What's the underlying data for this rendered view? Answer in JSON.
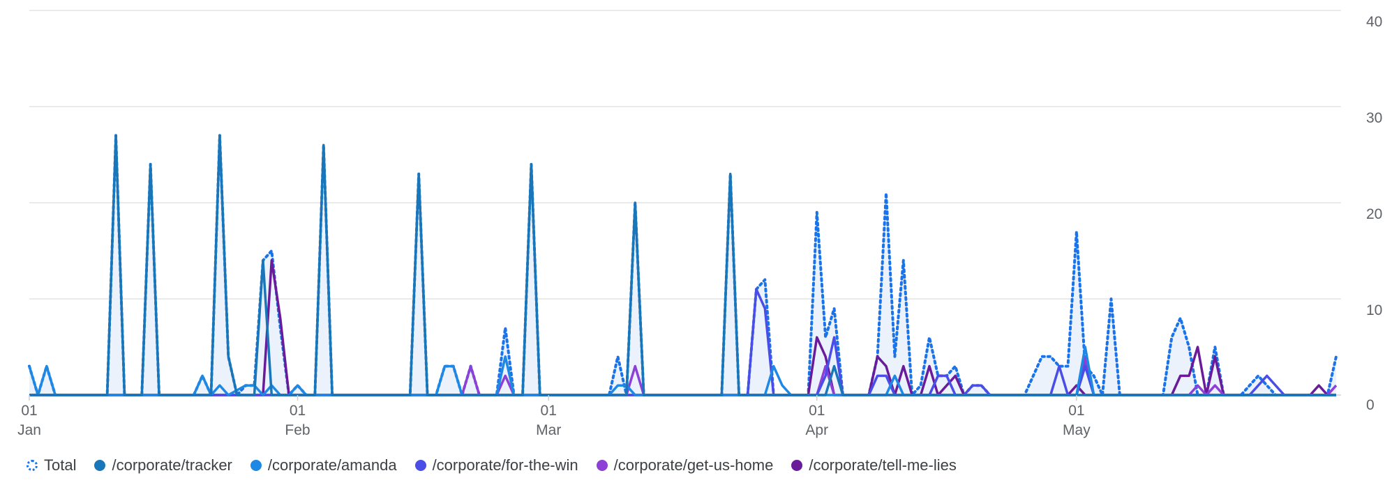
{
  "chart_data": {
    "type": "line",
    "title": "",
    "xlabel": "",
    "ylabel": "",
    "ylim": [
      0,
      40
    ],
    "yticks": [
      0,
      10,
      20,
      30,
      40
    ],
    "grid": true,
    "legend_position": "bottom",
    "x_start": "2024-01-01",
    "x_end": "2024-05-31",
    "x_ticks": [
      {
        "date": "2024-01-01",
        "day": "01",
        "month": "Jan"
      },
      {
        "date": "2024-02-01",
        "day": "01",
        "month": "Feb"
      },
      {
        "date": "2024-03-01",
        "day": "01",
        "month": "Mar"
      },
      {
        "date": "2024-04-01",
        "day": "01",
        "month": "Apr"
      },
      {
        "date": "2024-05-01",
        "day": "01",
        "month": "May"
      }
    ],
    "series": [
      {
        "name": "Total",
        "color": "#1a73e8",
        "style": "dotted-area",
        "points": [
          [
            "2024-01-01",
            3
          ],
          [
            "2024-01-02",
            0
          ],
          [
            "2024-01-03",
            3
          ],
          [
            "2024-01-04",
            0
          ],
          [
            "2024-01-10",
            0
          ],
          [
            "2024-01-11",
            27
          ],
          [
            "2024-01-12",
            0
          ],
          [
            "2024-01-14",
            0
          ],
          [
            "2024-01-15",
            24
          ],
          [
            "2024-01-16",
            0
          ],
          [
            "2024-01-20",
            0
          ],
          [
            "2024-01-21",
            2
          ],
          [
            "2024-01-22",
            0
          ],
          [
            "2024-01-23",
            27
          ],
          [
            "2024-01-24",
            4
          ],
          [
            "2024-01-25",
            0
          ],
          [
            "2024-01-26",
            1
          ],
          [
            "2024-01-27",
            1
          ],
          [
            "2024-01-28",
            14
          ],
          [
            "2024-01-29",
            15
          ],
          [
            "2024-01-30",
            7
          ],
          [
            "2024-01-31",
            0
          ],
          [
            "2024-02-01",
            1
          ],
          [
            "2024-02-02",
            0
          ],
          [
            "2024-02-03",
            0
          ],
          [
            "2024-02-04",
            26
          ],
          [
            "2024-02-05",
            0
          ],
          [
            "2024-02-14",
            0
          ],
          [
            "2024-02-15",
            23
          ],
          [
            "2024-02-16",
            0
          ],
          [
            "2024-02-17",
            0
          ],
          [
            "2024-02-18",
            3
          ],
          [
            "2024-02-19",
            3
          ],
          [
            "2024-02-20",
            0
          ],
          [
            "2024-02-21",
            3
          ],
          [
            "2024-02-22",
            0
          ],
          [
            "2024-02-24",
            0
          ],
          [
            "2024-02-25",
            7
          ],
          [
            "2024-02-26",
            0
          ],
          [
            "2024-02-27",
            0
          ],
          [
            "2024-02-28",
            24
          ],
          [
            "2024-02-29",
            0
          ],
          [
            "2024-03-08",
            0
          ],
          [
            "2024-03-09",
            4
          ],
          [
            "2024-03-10",
            0
          ],
          [
            "2024-03-11",
            20
          ],
          [
            "2024-03-12",
            0
          ],
          [
            "2024-03-21",
            0
          ],
          [
            "2024-03-22",
            23
          ],
          [
            "2024-03-23",
            0
          ],
          [
            "2024-03-24",
            0
          ],
          [
            "2024-03-25",
            11
          ],
          [
            "2024-03-26",
            12
          ],
          [
            "2024-03-27",
            0
          ],
          [
            "2024-03-31",
            0
          ],
          [
            "2024-04-01",
            19
          ],
          [
            "2024-04-02",
            6
          ],
          [
            "2024-04-03",
            9
          ],
          [
            "2024-04-04",
            0
          ],
          [
            "2024-04-07",
            0
          ],
          [
            "2024-04-08",
            4
          ],
          [
            "2024-04-09",
            21
          ],
          [
            "2024-04-10",
            4
          ],
          [
            "2024-04-11",
            14
          ],
          [
            "2024-04-12",
            0
          ],
          [
            "2024-04-13",
            1
          ],
          [
            "2024-04-14",
            6
          ],
          [
            "2024-04-15",
            2
          ],
          [
            "2024-04-16",
            2
          ],
          [
            "2024-04-17",
            3
          ],
          [
            "2024-04-18",
            0
          ],
          [
            "2024-04-19",
            1
          ],
          [
            "2024-04-20",
            1
          ],
          [
            "2024-04-21",
            0
          ],
          [
            "2024-04-25",
            0
          ],
          [
            "2024-04-26",
            2
          ],
          [
            "2024-04-27",
            4
          ],
          [
            "2024-04-28",
            4
          ],
          [
            "2024-04-29",
            3
          ],
          [
            "2024-04-30",
            3
          ],
          [
            "2024-05-01",
            17
          ],
          [
            "2024-05-02",
            3
          ],
          [
            "2024-05-03",
            2
          ],
          [
            "2024-05-04",
            0
          ],
          [
            "2024-05-05",
            10
          ],
          [
            "2024-05-06",
            0
          ],
          [
            "2024-05-11",
            0
          ],
          [
            "2024-05-12",
            6
          ],
          [
            "2024-05-13",
            8
          ],
          [
            "2024-05-14",
            5
          ],
          [
            "2024-05-15",
            0
          ],
          [
            "2024-05-16",
            0
          ],
          [
            "2024-05-17",
            5
          ],
          [
            "2024-05-18",
            0
          ],
          [
            "2024-05-20",
            0
          ],
          [
            "2024-05-22",
            2
          ],
          [
            "2024-05-24",
            0
          ],
          [
            "2024-05-30",
            0
          ],
          [
            "2024-05-31",
            4
          ]
        ]
      },
      {
        "name": "/corporate/tracker",
        "color": "#1976b8",
        "style": "line",
        "points": [
          [
            "2024-01-01",
            0
          ],
          [
            "2024-01-10",
            0
          ],
          [
            "2024-01-11",
            27
          ],
          [
            "2024-01-12",
            0
          ],
          [
            "2024-01-14",
            0
          ],
          [
            "2024-01-15",
            24
          ],
          [
            "2024-01-16",
            0
          ],
          [
            "2024-01-22",
            0
          ],
          [
            "2024-01-23",
            27
          ],
          [
            "2024-01-24",
            4
          ],
          [
            "2024-01-25",
            0
          ],
          [
            "2024-01-27",
            0
          ],
          [
            "2024-01-28",
            14
          ],
          [
            "2024-01-29",
            0
          ],
          [
            "2024-02-03",
            0
          ],
          [
            "2024-02-04",
            26
          ],
          [
            "2024-02-05",
            0
          ],
          [
            "2024-02-14",
            0
          ],
          [
            "2024-02-15",
            23
          ],
          [
            "2024-02-16",
            0
          ],
          [
            "2024-02-27",
            0
          ],
          [
            "2024-02-28",
            24
          ],
          [
            "2024-02-29",
            0
          ],
          [
            "2024-03-10",
            0
          ],
          [
            "2024-03-11",
            20
          ],
          [
            "2024-03-12",
            0
          ],
          [
            "2024-03-21",
            0
          ],
          [
            "2024-03-22",
            23
          ],
          [
            "2024-03-23",
            0
          ],
          [
            "2024-04-02",
            0
          ],
          [
            "2024-04-03",
            3
          ],
          [
            "2024-04-04",
            0
          ],
          [
            "2024-05-31",
            0
          ]
        ]
      },
      {
        "name": "/corporate/amanda",
        "color": "#1e88e5",
        "style": "line",
        "points": [
          [
            "2024-01-01",
            3
          ],
          [
            "2024-01-02",
            0
          ],
          [
            "2024-01-03",
            3
          ],
          [
            "2024-01-04",
            0
          ],
          [
            "2024-01-20",
            0
          ],
          [
            "2024-01-21",
            2
          ],
          [
            "2024-01-22",
            0
          ],
          [
            "2024-01-23",
            1
          ],
          [
            "2024-01-24",
            0
          ],
          [
            "2024-01-26",
            1
          ],
          [
            "2024-01-27",
            1
          ],
          [
            "2024-01-28",
            0
          ],
          [
            "2024-01-29",
            1
          ],
          [
            "2024-01-30",
            0
          ],
          [
            "2024-01-31",
            0
          ],
          [
            "2024-02-01",
            1
          ],
          [
            "2024-02-02",
            0
          ],
          [
            "2024-02-17",
            0
          ],
          [
            "2024-02-18",
            3
          ],
          [
            "2024-02-19",
            3
          ],
          [
            "2024-02-20",
            0
          ],
          [
            "2024-02-24",
            0
          ],
          [
            "2024-02-25",
            4
          ],
          [
            "2024-02-26",
            0
          ],
          [
            "2024-03-08",
            0
          ],
          [
            "2024-03-09",
            1
          ],
          [
            "2024-03-10",
            1
          ],
          [
            "2024-03-11",
            0
          ],
          [
            "2024-03-26",
            0
          ],
          [
            "2024-03-27",
            3
          ],
          [
            "2024-03-28",
            1
          ],
          [
            "2024-03-29",
            0
          ],
          [
            "2024-04-09",
            0
          ],
          [
            "2024-04-10",
            2
          ],
          [
            "2024-04-11",
            0
          ],
          [
            "2024-05-01",
            0
          ],
          [
            "2024-05-02",
            5
          ],
          [
            "2024-05-03",
            0
          ],
          [
            "2024-05-31",
            0
          ]
        ]
      },
      {
        "name": "/corporate/for-the-win",
        "color": "#4a4de6",
        "style": "line",
        "points": [
          [
            "2024-01-01",
            0
          ],
          [
            "2024-03-24",
            0
          ],
          [
            "2024-03-25",
            11
          ],
          [
            "2024-03-26",
            9
          ],
          [
            "2024-03-27",
            0
          ],
          [
            "2024-04-01",
            0
          ],
          [
            "2024-04-02",
            2
          ],
          [
            "2024-04-03",
            6
          ],
          [
            "2024-04-04",
            0
          ],
          [
            "2024-04-07",
            0
          ],
          [
            "2024-04-08",
            2
          ],
          [
            "2024-04-09",
            2
          ],
          [
            "2024-04-10",
            0
          ],
          [
            "2024-04-14",
            0
          ],
          [
            "2024-04-15",
            2
          ],
          [
            "2024-04-16",
            2
          ],
          [
            "2024-04-17",
            0
          ],
          [
            "2024-04-18",
            0
          ],
          [
            "2024-04-19",
            1
          ],
          [
            "2024-04-20",
            1
          ],
          [
            "2024-04-21",
            0
          ],
          [
            "2024-04-28",
            0
          ],
          [
            "2024-04-29",
            3
          ],
          [
            "2024-04-30",
            0
          ],
          [
            "2024-05-01",
            0
          ],
          [
            "2024-05-02",
            3
          ],
          [
            "2024-05-03",
            0
          ],
          [
            "2024-05-21",
            0
          ],
          [
            "2024-05-23",
            2
          ],
          [
            "2024-05-25",
            0
          ],
          [
            "2024-05-31",
            0
          ]
        ]
      },
      {
        "name": "/corporate/get-us-home",
        "color": "#8e3fd6",
        "style": "line",
        "points": [
          [
            "2024-01-01",
            0
          ],
          [
            "2024-02-20",
            0
          ],
          [
            "2024-02-21",
            3
          ],
          [
            "2024-02-22",
            0
          ],
          [
            "2024-02-24",
            0
          ],
          [
            "2024-02-25",
            2
          ],
          [
            "2024-02-26",
            0
          ],
          [
            "2024-03-10",
            0
          ],
          [
            "2024-03-11",
            3
          ],
          [
            "2024-03-12",
            0
          ],
          [
            "2024-04-01",
            0
          ],
          [
            "2024-04-02",
            3
          ],
          [
            "2024-04-03",
            0
          ],
          [
            "2024-05-01",
            0
          ],
          [
            "2024-05-02",
            4
          ],
          [
            "2024-05-03",
            0
          ],
          [
            "2024-05-14",
            0
          ],
          [
            "2024-05-15",
            1
          ],
          [
            "2024-05-16",
            0
          ],
          [
            "2024-05-17",
            1
          ],
          [
            "2024-05-18",
            0
          ],
          [
            "2024-05-29",
            0
          ],
          [
            "2024-05-30",
            0
          ],
          [
            "2024-05-31",
            1
          ]
        ]
      },
      {
        "name": "/corporate/tell-me-lies",
        "color": "#6a1b9a",
        "style": "line",
        "points": [
          [
            "2024-01-01",
            0
          ],
          [
            "2024-01-28",
            0
          ],
          [
            "2024-01-29",
            14
          ],
          [
            "2024-01-30",
            8
          ],
          [
            "2024-01-31",
            0
          ],
          [
            "2024-03-31",
            0
          ],
          [
            "2024-04-01",
            6
          ],
          [
            "2024-04-02",
            4
          ],
          [
            "2024-04-03",
            0
          ],
          [
            "2024-04-07",
            0
          ],
          [
            "2024-04-08",
            4
          ],
          [
            "2024-04-09",
            3
          ],
          [
            "2024-04-10",
            0
          ],
          [
            "2024-04-11",
            3
          ],
          [
            "2024-04-12",
            0
          ],
          [
            "2024-04-13",
            0
          ],
          [
            "2024-04-14",
            3
          ],
          [
            "2024-04-15",
            0
          ],
          [
            "2024-04-16",
            1
          ],
          [
            "2024-04-17",
            2
          ],
          [
            "2024-04-18",
            0
          ],
          [
            "2024-04-30",
            0
          ],
          [
            "2024-05-01",
            1
          ],
          [
            "2024-05-02",
            0
          ],
          [
            "2024-05-12",
            0
          ],
          [
            "2024-05-13",
            2
          ],
          [
            "2024-05-14",
            2
          ],
          [
            "2024-05-15",
            5
          ],
          [
            "2024-05-16",
            0
          ],
          [
            "2024-05-17",
            4
          ],
          [
            "2024-05-18",
            0
          ],
          [
            "2024-05-28",
            0
          ],
          [
            "2024-05-29",
            1
          ],
          [
            "2024-05-30",
            0
          ],
          [
            "2024-05-31",
            0
          ]
        ]
      }
    ]
  }
}
